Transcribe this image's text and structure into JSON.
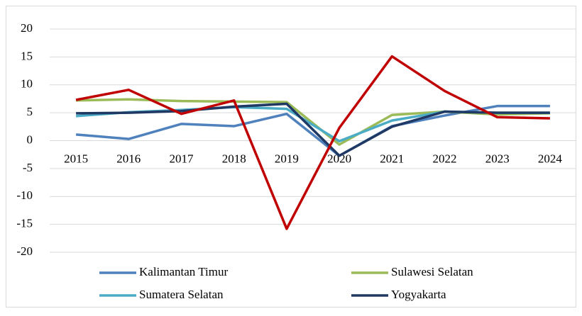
{
  "chart_data": {
    "type": "line",
    "categories": [
      "2015",
      "2016",
      "2017",
      "2018",
      "2019",
      "2020",
      "2021",
      "2022",
      "2023",
      "2024"
    ],
    "series": [
      {
        "name": "Kalimantan Timur",
        "color": "#4f81bd",
        "values": [
          1.1,
          0.3,
          3.0,
          2.6,
          4.8,
          -2.7,
          2.6,
          4.5,
          6.2,
          6.2
        ]
      },
      {
        "name": "Sulawesi Selatan",
        "color": "#9bbb59",
        "values": [
          7.2,
          7.4,
          7.1,
          7.0,
          6.9,
          -0.7,
          4.6,
          5.2,
          4.7,
          4.9
        ]
      },
      {
        "name": "Sumatera Selatan",
        "color": "#4bacc6",
        "values": [
          4.4,
          5.1,
          5.5,
          6.0,
          5.7,
          -0.1,
          3.6,
          5.2,
          5.0,
          5.0
        ]
      },
      {
        "name": "Yogyakarta",
        "color": "#1f3864",
        "values": [
          4.9,
          5.0,
          5.3,
          6.1,
          6.6,
          -2.7,
          2.5,
          5.2,
          5.0,
          5.0
        ]
      },
      {
        "color": "#c00000",
        "values": [
          7.3,
          9.1,
          4.8,
          7.2,
          -15.8,
          2.3,
          15.1,
          8.9,
          4.2,
          4.0
        ]
      }
    ],
    "ylim": [
      -20,
      20
    ],
    "yticks": [
      -20,
      -15,
      -10,
      -5,
      0,
      5,
      10,
      15,
      20
    ],
    "grid": true
  }
}
